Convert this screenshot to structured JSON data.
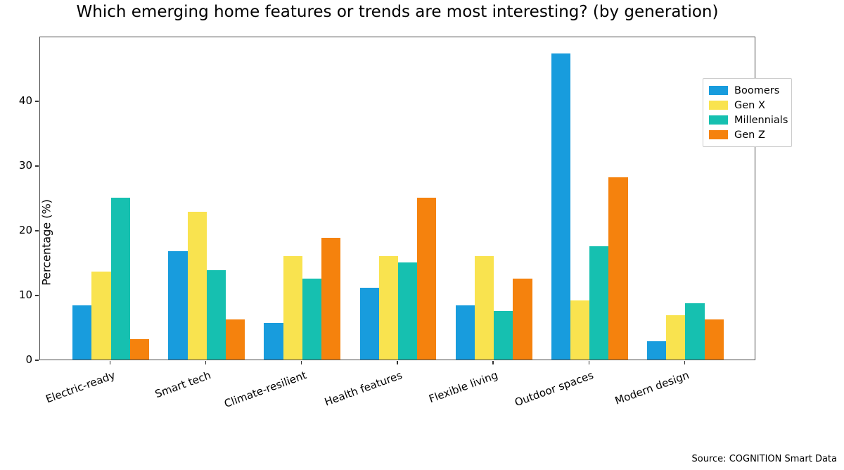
{
  "title": "Which emerging home features or trends are most interesting? (by generation)",
  "source_note": "Source: COGNITION Smart Data",
  "chart_data": {
    "type": "bar",
    "title": "Which emerging home features or trends are most interesting? (by generation)",
    "xlabel": "",
    "ylabel": "Percentage (%)",
    "ylim": [
      0,
      50
    ],
    "yticks": [
      0,
      10,
      20,
      30,
      40
    ],
    "grid": false,
    "legend_position": "upper right",
    "categories": [
      "Electric-ready",
      "Smart tech",
      "Climate-resilient",
      "Health features",
      "Flexible living",
      "Outdoor spaces",
      "Modern design"
    ],
    "series": [
      {
        "name": "Boomers",
        "color": "#189cdd",
        "values": [
          8.4,
          16.7,
          5.6,
          11.1,
          8.4,
          47.3,
          2.8
        ]
      },
      {
        "name": "Gen X",
        "color": "#f9e34f",
        "values": [
          13.6,
          22.8,
          16.0,
          16.0,
          16.0,
          9.1,
          6.8
        ]
      },
      {
        "name": "Millennials",
        "color": "#16c0b0",
        "values": [
          25.0,
          13.8,
          12.5,
          15.0,
          7.5,
          17.5,
          8.7
        ]
      },
      {
        "name": "Gen Z",
        "color": "#f5820d",
        "values": [
          3.1,
          6.2,
          18.8,
          25.0,
          12.5,
          28.1,
          6.2
        ]
      }
    ]
  }
}
